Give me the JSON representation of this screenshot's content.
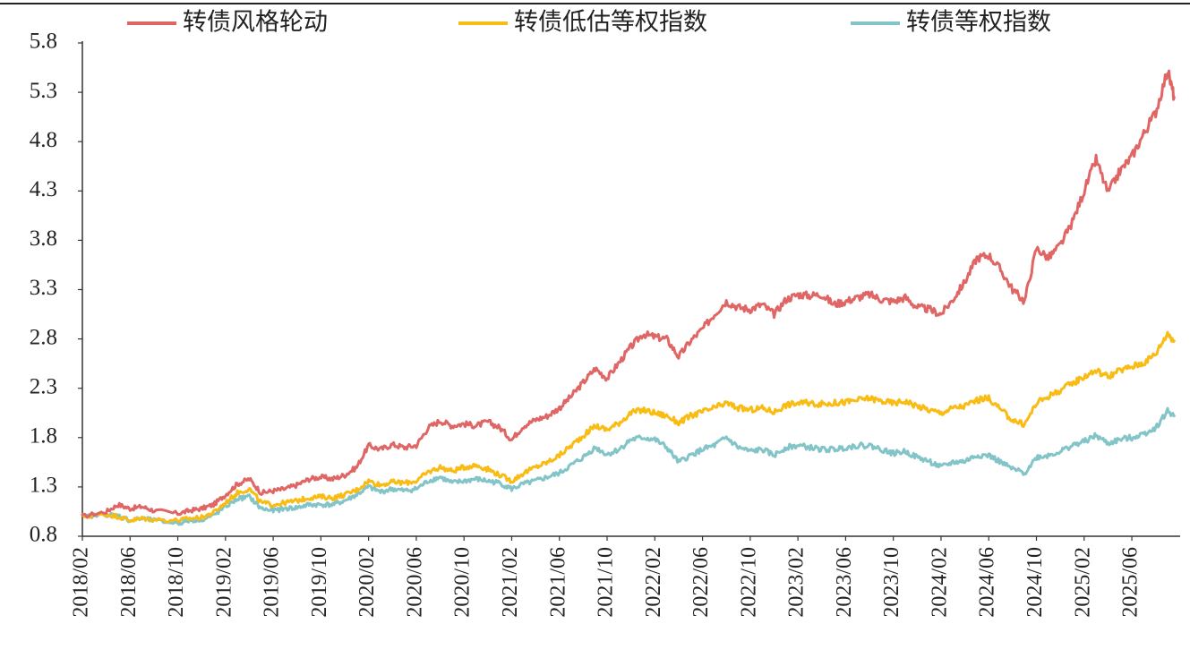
{
  "chart_data": {
    "type": "line",
    "title": "",
    "xlabel": "",
    "ylabel": "",
    "ylim": [
      0.8,
      5.8
    ],
    "yticks": [
      "0.8",
      "1.3",
      "1.8",
      "2.3",
      "2.8",
      "3.3",
      "3.8",
      "4.3",
      "4.8",
      "5.3",
      "5.8"
    ],
    "xticks": [
      "2018/02",
      "2018/06",
      "2018/10",
      "2019/02",
      "2019/06",
      "2019/10",
      "2020/02",
      "2020/06",
      "2020/10",
      "2021/02",
      "2021/06",
      "2021/10",
      "2022/02",
      "2022/06",
      "2022/10",
      "2023/02",
      "2023/06",
      "2023/10",
      "2024/02",
      "2024/06",
      "2024/10",
      "2025/02",
      "2025/06"
    ],
    "legend_position": "top",
    "grid": false,
    "series": [
      {
        "name": "转债风格轮动",
        "color": "#e06666",
        "points": [
          [
            "2018/02",
            1.0
          ],
          [
            "2018/04",
            1.05
          ],
          [
            "2018/05",
            1.12
          ],
          [
            "2018/06",
            1.08
          ],
          [
            "2018/07",
            1.1
          ],
          [
            "2018/08",
            1.06
          ],
          [
            "2018/10",
            1.03
          ],
          [
            "2018/11",
            1.06
          ],
          [
            "2018/12",
            1.08
          ],
          [
            "2019/01",
            1.12
          ],
          [
            "2019/02",
            1.22
          ],
          [
            "2019/03",
            1.33
          ],
          [
            "2019/04",
            1.38
          ],
          [
            "2019/05",
            1.24
          ],
          [
            "2019/06",
            1.26
          ],
          [
            "2019/07",
            1.28
          ],
          [
            "2019/08",
            1.32
          ],
          [
            "2019/09",
            1.38
          ],
          [
            "2019/10",
            1.4
          ],
          [
            "2019/11",
            1.38
          ],
          [
            "2019/12",
            1.42
          ],
          [
            "2020/01",
            1.5
          ],
          [
            "2020/02",
            1.72
          ],
          [
            "2020/03",
            1.68
          ],
          [
            "2020/04",
            1.73
          ],
          [
            "2020/05",
            1.7
          ],
          [
            "2020/06",
            1.72
          ],
          [
            "2020/07",
            1.9
          ],
          [
            "2020/08",
            1.97
          ],
          [
            "2020/09",
            1.92
          ],
          [
            "2020/10",
            1.94
          ],
          [
            "2020/11",
            1.92
          ],
          [
            "2020/12",
            1.96
          ],
          [
            "2021/01",
            1.9
          ],
          [
            "2021/02",
            1.78
          ],
          [
            "2021/03",
            1.92
          ],
          [
            "2021/04",
            1.98
          ],
          [
            "2021/05",
            2.02
          ],
          [
            "2021/06",
            2.1
          ],
          [
            "2021/07",
            2.22
          ],
          [
            "2021/08",
            2.36
          ],
          [
            "2021/09",
            2.5
          ],
          [
            "2021/10",
            2.4
          ],
          [
            "2021/11",
            2.56
          ],
          [
            "2021/12",
            2.72
          ],
          [
            "2022/01",
            2.85
          ],
          [
            "2022/02",
            2.82
          ],
          [
            "2022/03",
            2.8
          ],
          [
            "2022/04",
            2.62
          ],
          [
            "2022/05",
            2.78
          ],
          [
            "2022/06",
            2.9
          ],
          [
            "2022/07",
            3.05
          ],
          [
            "2022/08",
            3.18
          ],
          [
            "2022/09",
            3.12
          ],
          [
            "2022/10",
            3.1
          ],
          [
            "2022/11",
            3.15
          ],
          [
            "2022/12",
            3.05
          ],
          [
            "2023/01",
            3.2
          ],
          [
            "2023/02",
            3.25
          ],
          [
            "2023/03",
            3.24
          ],
          [
            "2023/04",
            3.25
          ],
          [
            "2023/05",
            3.15
          ],
          [
            "2023/06",
            3.18
          ],
          [
            "2023/07",
            3.22
          ],
          [
            "2023/08",
            3.25
          ],
          [
            "2023/09",
            3.2
          ],
          [
            "2023/10",
            3.18
          ],
          [
            "2023/11",
            3.22
          ],
          [
            "2023/12",
            3.12
          ],
          [
            "2024/01",
            3.1
          ],
          [
            "2024/02",
            3.05
          ],
          [
            "2024/03",
            3.2
          ],
          [
            "2024/04",
            3.38
          ],
          [
            "2024/05",
            3.62
          ],
          [
            "2024/06",
            3.65
          ],
          [
            "2024/07",
            3.5
          ],
          [
            "2024/08",
            3.3
          ],
          [
            "2024/09",
            3.18
          ],
          [
            "2024/10",
            3.72
          ],
          [
            "2024/11",
            3.62
          ],
          [
            "2024/12",
            3.75
          ],
          [
            "2025/01",
            3.98
          ],
          [
            "2025/02",
            4.3
          ],
          [
            "2025/03",
            4.62
          ],
          [
            "2025/04",
            4.28
          ],
          [
            "2025/05",
            4.5
          ],
          [
            "2025/06",
            4.65
          ],
          [
            "2025/07",
            4.88
          ],
          [
            "2025/08",
            5.1
          ],
          [
            "2025/09",
            5.52
          ],
          [
            "2025/09",
            5.25
          ]
        ]
      },
      {
        "name": "转债低估等权指数",
        "color": "#f9bc15",
        "points": [
          [
            "2018/02",
            1.0
          ],
          [
            "2018/04",
            1.02
          ],
          [
            "2018/05",
            1.0
          ],
          [
            "2018/06",
            0.96
          ],
          [
            "2018/07",
            0.98
          ],
          [
            "2018/08",
            0.97
          ],
          [
            "2018/10",
            0.96
          ],
          [
            "2018/11",
            0.98
          ],
          [
            "2018/12",
            0.99
          ],
          [
            "2019/01",
            1.04
          ],
          [
            "2019/02",
            1.14
          ],
          [
            "2019/03",
            1.24
          ],
          [
            "2019/04",
            1.28
          ],
          [
            "2019/05",
            1.14
          ],
          [
            "2019/06",
            1.12
          ],
          [
            "2019/07",
            1.14
          ],
          [
            "2019/08",
            1.16
          ],
          [
            "2019/09",
            1.19
          ],
          [
            "2019/10",
            1.2
          ],
          [
            "2019/11",
            1.19
          ],
          [
            "2019/12",
            1.22
          ],
          [
            "2020/01",
            1.27
          ],
          [
            "2020/02",
            1.36
          ],
          [
            "2020/03",
            1.32
          ],
          [
            "2020/04",
            1.35
          ],
          [
            "2020/05",
            1.34
          ],
          [
            "2020/06",
            1.36
          ],
          [
            "2020/07",
            1.45
          ],
          [
            "2020/08",
            1.5
          ],
          [
            "2020/09",
            1.46
          ],
          [
            "2020/10",
            1.5
          ],
          [
            "2020/11",
            1.52
          ],
          [
            "2020/12",
            1.48
          ],
          [
            "2021/01",
            1.42
          ],
          [
            "2021/02",
            1.36
          ],
          [
            "2021/03",
            1.44
          ],
          [
            "2021/04",
            1.5
          ],
          [
            "2021/05",
            1.55
          ],
          [
            "2021/06",
            1.62
          ],
          [
            "2021/07",
            1.72
          ],
          [
            "2021/08",
            1.82
          ],
          [
            "2021/09",
            1.92
          ],
          [
            "2021/10",
            1.88
          ],
          [
            "2021/11",
            1.95
          ],
          [
            "2021/12",
            2.05
          ],
          [
            "2022/01",
            2.08
          ],
          [
            "2022/02",
            2.05
          ],
          [
            "2022/03",
            2.02
          ],
          [
            "2022/04",
            1.95
          ],
          [
            "2022/05",
            2.02
          ],
          [
            "2022/06",
            2.06
          ],
          [
            "2022/07",
            2.1
          ],
          [
            "2022/08",
            2.15
          ],
          [
            "2022/09",
            2.1
          ],
          [
            "2022/10",
            2.08
          ],
          [
            "2022/11",
            2.1
          ],
          [
            "2022/12",
            2.06
          ],
          [
            "2023/01",
            2.13
          ],
          [
            "2023/02",
            2.15
          ],
          [
            "2023/03",
            2.15
          ],
          [
            "2023/04",
            2.14
          ],
          [
            "2023/05",
            2.15
          ],
          [
            "2023/06",
            2.16
          ],
          [
            "2023/07",
            2.18
          ],
          [
            "2023/08",
            2.2
          ],
          [
            "2023/09",
            2.17
          ],
          [
            "2023/10",
            2.15
          ],
          [
            "2023/11",
            2.17
          ],
          [
            "2023/12",
            2.12
          ],
          [
            "2024/01",
            2.08
          ],
          [
            "2024/02",
            2.05
          ],
          [
            "2024/03",
            2.1
          ],
          [
            "2024/04",
            2.12
          ],
          [
            "2024/05",
            2.18
          ],
          [
            "2024/06",
            2.2
          ],
          [
            "2024/07",
            2.08
          ],
          [
            "2024/08",
            1.98
          ],
          [
            "2024/09",
            1.93
          ],
          [
            "2024/10",
            2.15
          ],
          [
            "2024/11",
            2.22
          ],
          [
            "2024/12",
            2.28
          ],
          [
            "2025/01",
            2.35
          ],
          [
            "2025/02",
            2.42
          ],
          [
            "2025/03",
            2.48
          ],
          [
            "2025/04",
            2.42
          ],
          [
            "2025/05",
            2.48
          ],
          [
            "2025/06",
            2.52
          ],
          [
            "2025/07",
            2.56
          ],
          [
            "2025/08",
            2.65
          ],
          [
            "2025/09",
            2.86
          ],
          [
            "2025/09",
            2.78
          ]
        ]
      },
      {
        "name": "转债等权指数",
        "color": "#82c4c8",
        "points": [
          [
            "2018/02",
            1.0
          ],
          [
            "2018/04",
            1.02
          ],
          [
            "2018/05",
            1.01
          ],
          [
            "2018/06",
            0.96
          ],
          [
            "2018/07",
            0.98
          ],
          [
            "2018/08",
            0.96
          ],
          [
            "2018/10",
            0.93
          ],
          [
            "2018/11",
            0.96
          ],
          [
            "2018/12",
            0.97
          ],
          [
            "2019/01",
            1.01
          ],
          [
            "2019/02",
            1.1
          ],
          [
            "2019/03",
            1.18
          ],
          [
            "2019/04",
            1.2
          ],
          [
            "2019/05",
            1.08
          ],
          [
            "2019/06",
            1.06
          ],
          [
            "2019/07",
            1.08
          ],
          [
            "2019/08",
            1.09
          ],
          [
            "2019/09",
            1.12
          ],
          [
            "2019/10",
            1.12
          ],
          [
            "2019/11",
            1.12
          ],
          [
            "2019/12",
            1.16
          ],
          [
            "2020/01",
            1.22
          ],
          [
            "2020/02",
            1.3
          ],
          [
            "2020/03",
            1.25
          ],
          [
            "2020/04",
            1.28
          ],
          [
            "2020/05",
            1.26
          ],
          [
            "2020/06",
            1.28
          ],
          [
            "2020/07",
            1.36
          ],
          [
            "2020/08",
            1.4
          ],
          [
            "2020/09",
            1.34
          ],
          [
            "2020/10",
            1.36
          ],
          [
            "2020/11",
            1.38
          ],
          [
            "2020/12",
            1.36
          ],
          [
            "2021/01",
            1.34
          ],
          [
            "2021/02",
            1.28
          ],
          [
            "2021/03",
            1.33
          ],
          [
            "2021/04",
            1.36
          ],
          [
            "2021/05",
            1.4
          ],
          [
            "2021/06",
            1.44
          ],
          [
            "2021/07",
            1.52
          ],
          [
            "2021/08",
            1.6
          ],
          [
            "2021/09",
            1.7
          ],
          [
            "2021/10",
            1.63
          ],
          [
            "2021/11",
            1.68
          ],
          [
            "2021/12",
            1.78
          ],
          [
            "2022/01",
            1.8
          ],
          [
            "2022/02",
            1.78
          ],
          [
            "2022/03",
            1.7
          ],
          [
            "2022/04",
            1.55
          ],
          [
            "2022/05",
            1.62
          ],
          [
            "2022/06",
            1.68
          ],
          [
            "2022/07",
            1.72
          ],
          [
            "2022/08",
            1.8
          ],
          [
            "2022/09",
            1.7
          ],
          [
            "2022/10",
            1.66
          ],
          [
            "2022/11",
            1.68
          ],
          [
            "2022/12",
            1.62
          ],
          [
            "2023/01",
            1.7
          ],
          [
            "2023/02",
            1.72
          ],
          [
            "2023/03",
            1.7
          ],
          [
            "2023/04",
            1.68
          ],
          [
            "2023/05",
            1.68
          ],
          [
            "2023/06",
            1.7
          ],
          [
            "2023/07",
            1.72
          ],
          [
            "2023/08",
            1.72
          ],
          [
            "2023/09",
            1.68
          ],
          [
            "2023/10",
            1.64
          ],
          [
            "2023/11",
            1.66
          ],
          [
            "2023/12",
            1.6
          ],
          [
            "2024/01",
            1.56
          ],
          [
            "2024/02",
            1.5
          ],
          [
            "2024/03",
            1.55
          ],
          [
            "2024/04",
            1.56
          ],
          [
            "2024/05",
            1.62
          ],
          [
            "2024/06",
            1.62
          ],
          [
            "2024/07",
            1.55
          ],
          [
            "2024/08",
            1.48
          ],
          [
            "2024/09",
            1.44
          ],
          [
            "2024/10",
            1.6
          ],
          [
            "2024/11",
            1.62
          ],
          [
            "2024/12",
            1.66
          ],
          [
            "2025/01",
            1.72
          ],
          [
            "2025/02",
            1.76
          ],
          [
            "2025/03",
            1.82
          ],
          [
            "2025/04",
            1.74
          ],
          [
            "2025/05",
            1.78
          ],
          [
            "2025/06",
            1.8
          ],
          [
            "2025/07",
            1.84
          ],
          [
            "2025/08",
            1.9
          ],
          [
            "2025/09",
            2.07
          ],
          [
            "2025/09",
            2.02
          ]
        ]
      }
    ]
  }
}
